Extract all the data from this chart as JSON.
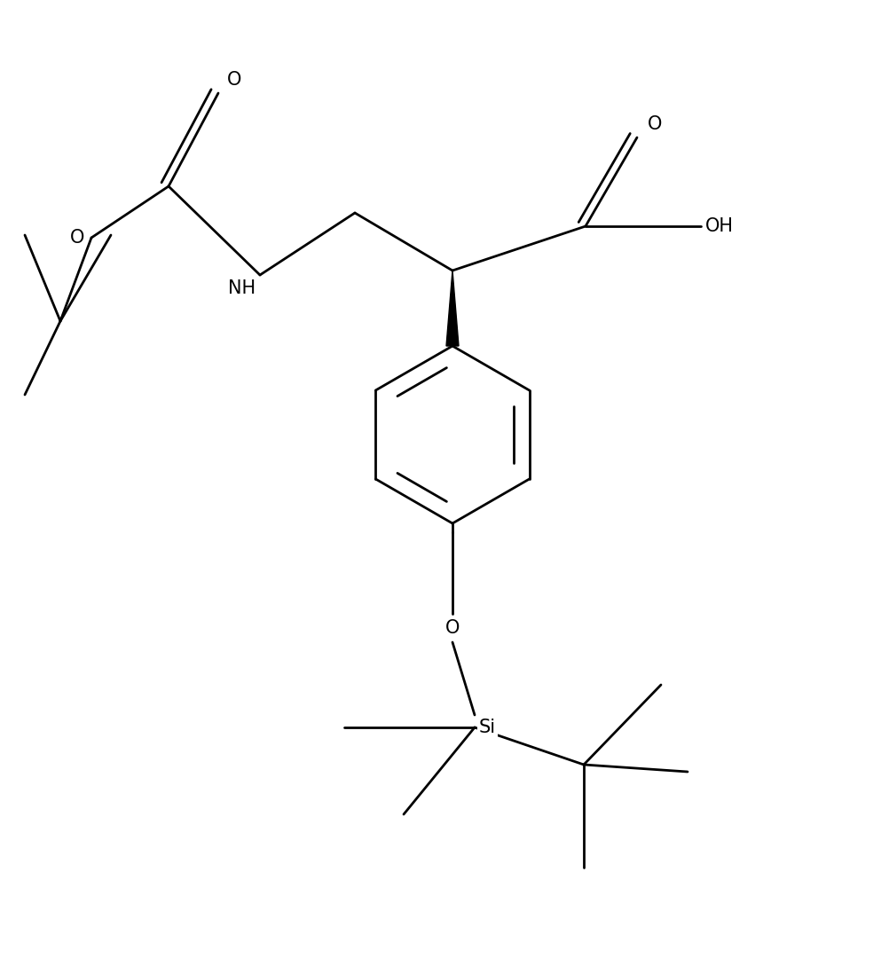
{
  "background_color": "#ffffff",
  "line_color": "#000000",
  "line_width": 2.0,
  "font_size": 15,
  "figsize": [
    9.93,
    10.98
  ],
  "dpi": 100,
  "xlim": [
    0,
    9.93
  ],
  "ylim": [
    0,
    10.98
  ]
}
